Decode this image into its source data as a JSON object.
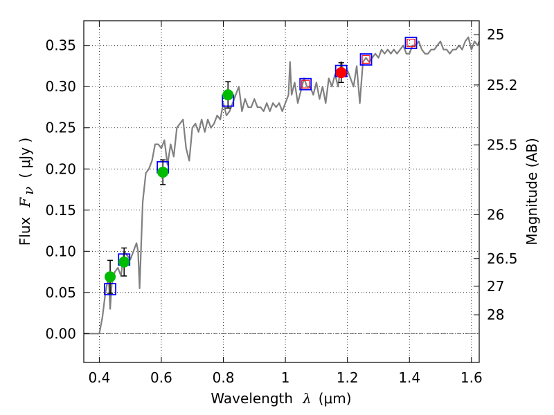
{
  "chart_data": {
    "type": "scatter",
    "xlabel": {
      "prefix": "Wavelength",
      "symbol": "λ",
      "unit": "(μm)"
    },
    "ylabel": {
      "prefix": "Flux",
      "symbol": "F",
      "subscript": "ν",
      "unit": "( μJy )"
    },
    "ylabel_right": "Magnitude (AB)",
    "xlim": [
      0.35,
      1.625
    ],
    "ylim": [
      -0.035,
      0.38
    ],
    "x_ticks": [
      0.4,
      0.6,
      0.8,
      1.0,
      1.2,
      1.4,
      1.6
    ],
    "x_tick_labels": [
      "0.4",
      "0.6",
      "0.8",
      "1",
      "1.2",
      "1.4",
      "1.6"
    ],
    "y_ticks": [
      0.0,
      0.05,
      0.1,
      0.15,
      0.2,
      0.25,
      0.3,
      0.35
    ],
    "y_tick_labels": [
      "0.00",
      "0.05",
      "0.10",
      "0.15",
      "0.20",
      "0.25",
      "0.30",
      "0.35"
    ],
    "right_ticks": [
      {
        "label": "25",
        "flux": 0.3631
      },
      {
        "label": "25.2",
        "flux": 0.302
      },
      {
        "label": "25.5",
        "flux": 0.2291
      },
      {
        "label": "26",
        "flux": 0.1445
      },
      {
        "label": "26.5",
        "flux": 0.0912
      },
      {
        "label": "27",
        "flux": 0.0575
      },
      {
        "label": "28",
        "flux": 0.0229
      }
    ],
    "grid": true,
    "zero_line": true,
    "spectrum": {
      "color": "#808080",
      "x": [
        0.35,
        0.38,
        0.4,
        0.41,
        0.42,
        0.43,
        0.435,
        0.44,
        0.45,
        0.46,
        0.47,
        0.48,
        0.49,
        0.5,
        0.51,
        0.52,
        0.525,
        0.53,
        0.54,
        0.55,
        0.56,
        0.57,
        0.58,
        0.59,
        0.6,
        0.61,
        0.62,
        0.63,
        0.64,
        0.65,
        0.66,
        0.67,
        0.68,
        0.69,
        0.7,
        0.71,
        0.72,
        0.73,
        0.74,
        0.75,
        0.76,
        0.77,
        0.78,
        0.79,
        0.8,
        0.81,
        0.82,
        0.83,
        0.84,
        0.85,
        0.86,
        0.87,
        0.88,
        0.89,
        0.9,
        0.91,
        0.92,
        0.93,
        0.94,
        0.95,
        0.96,
        0.97,
        0.98,
        0.99,
        1.0,
        1.01,
        1.015,
        1.02,
        1.03,
        1.04,
        1.05,
        1.06,
        1.07,
        1.08,
        1.09,
        1.1,
        1.11,
        1.12,
        1.13,
        1.14,
        1.15,
        1.16,
        1.17,
        1.18,
        1.19,
        1.2,
        1.21,
        1.22,
        1.23,
        1.24,
        1.25,
        1.26,
        1.27,
        1.28,
        1.29,
        1.3,
        1.31,
        1.32,
        1.33,
        1.34,
        1.35,
        1.36,
        1.37,
        1.38,
        1.39,
        1.4,
        1.41,
        1.42,
        1.43,
        1.44,
        1.45,
        1.46,
        1.47,
        1.48,
        1.49,
        1.5,
        1.51,
        1.52,
        1.53,
        1.54,
        1.55,
        1.56,
        1.57,
        1.58,
        1.59,
        1.6,
        1.61,
        1.62,
        1.625
      ],
      "y": [
        0.0,
        0.0,
        0.0,
        0.02,
        0.05,
        0.07,
        0.03,
        0.06,
        0.075,
        0.08,
        0.07,
        0.1,
        0.095,
        0.09,
        0.1,
        0.11,
        0.1,
        0.055,
        0.16,
        0.195,
        0.2,
        0.21,
        0.23,
        0.23,
        0.225,
        0.235,
        0.205,
        0.23,
        0.215,
        0.25,
        0.255,
        0.26,
        0.225,
        0.21,
        0.25,
        0.255,
        0.245,
        0.26,
        0.245,
        0.26,
        0.25,
        0.255,
        0.265,
        0.26,
        0.28,
        0.265,
        0.27,
        0.28,
        0.29,
        0.3,
        0.27,
        0.285,
        0.275,
        0.275,
        0.285,
        0.275,
        0.275,
        0.27,
        0.28,
        0.27,
        0.28,
        0.275,
        0.28,
        0.27,
        0.28,
        0.29,
        0.33,
        0.29,
        0.305,
        0.28,
        0.295,
        0.31,
        0.3,
        0.3,
        0.29,
        0.305,
        0.285,
        0.3,
        0.28,
        0.31,
        0.3,
        0.315,
        0.3,
        0.33,
        0.315,
        0.32,
        0.31,
        0.3,
        0.325,
        0.28,
        0.33,
        0.335,
        0.33,
        0.335,
        0.34,
        0.335,
        0.345,
        0.34,
        0.345,
        0.34,
        0.345,
        0.34,
        0.345,
        0.35,
        0.34,
        0.34,
        0.35,
        0.35,
        0.355,
        0.345,
        0.34,
        0.34,
        0.345,
        0.345,
        0.35,
        0.355,
        0.345,
        0.345,
        0.34,
        0.345,
        0.345,
        0.35,
        0.345,
        0.355,
        0.36,
        0.345,
        0.355,
        0.35,
        0.355
      ]
    },
    "model_points": {
      "stroke": "#0000ff",
      "x": [
        0.435,
        0.48,
        0.605,
        0.815,
        1.065,
        1.18,
        1.26,
        1.405
      ],
      "y": [
        0.054,
        0.09,
        0.202,
        0.283,
        0.303,
        0.319,
        0.333,
        0.353
      ]
    },
    "green_points": {
      "color": "#00bb00",
      "x": [
        0.435,
        0.48,
        0.605,
        0.815
      ],
      "y": [
        0.069,
        0.087,
        0.196,
        0.29
      ],
      "err": [
        0.02,
        0.017,
        0.015,
        0.016
      ]
    },
    "red_points": {
      "color": "#ff0000",
      "x": [
        1.18
      ],
      "y": [
        0.317
      ],
      "err": [
        0.012
      ]
    },
    "red_open_squares": {
      "color": "#ff0000",
      "x": [
        1.065,
        1.26,
        1.405
      ],
      "y": [
        0.303,
        0.333,
        0.353
      ]
    }
  }
}
